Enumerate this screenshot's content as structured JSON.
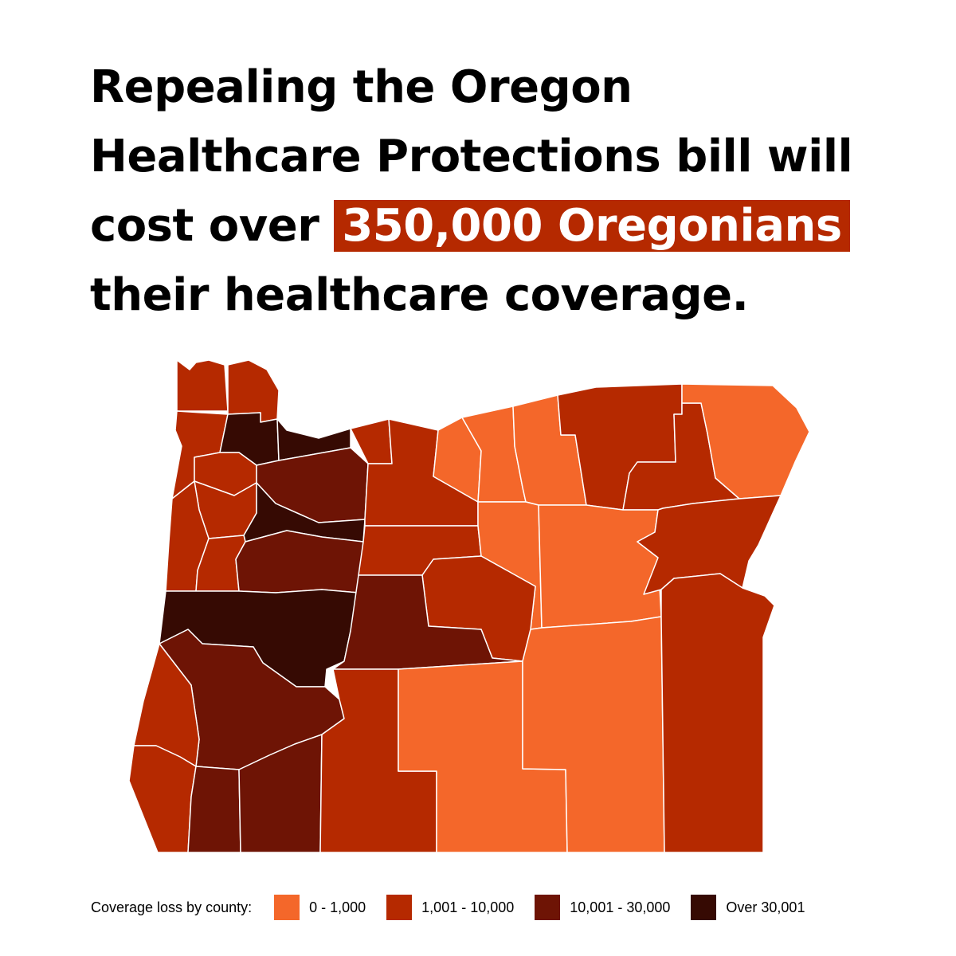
{
  "headline": {
    "line1": "Repealing the Oregon",
    "line2": "Healthcare Protections bill will",
    "line3_prefix": "cost over",
    "line3_highlight": "350,000 Oregonians",
    "line4": "their healthcare coverage."
  },
  "colors": {
    "tier1": "#f4672a",
    "tier2": "#b52900",
    "tier3": "#6e1405",
    "tier4": "#360a03",
    "highlight": "#b52900",
    "border": "#ffffff"
  },
  "legend": {
    "title": "Coverage loss by county:",
    "items": [
      {
        "label": "0 - 1,000",
        "tier": "tier1"
      },
      {
        "label": "1,001 - 10,000",
        "tier": "tier2"
      },
      {
        "label": "10,001 - 30,000",
        "tier": "tier3"
      },
      {
        "label": "Over 30,001",
        "tier": "tier4"
      }
    ]
  },
  "map": {
    "region": "Oregon",
    "counties": [
      {
        "name": "Clatsop",
        "tier": "tier2"
      },
      {
        "name": "Columbia",
        "tier": "tier2"
      },
      {
        "name": "Tillamook",
        "tier": "tier2"
      },
      {
        "name": "Washington",
        "tier": "tier4"
      },
      {
        "name": "Multnomah",
        "tier": "tier4"
      },
      {
        "name": "Yamhill",
        "tier": "tier2"
      },
      {
        "name": "Clackamas",
        "tier": "tier3"
      },
      {
        "name": "Polk",
        "tier": "tier2"
      },
      {
        "name": "Marion",
        "tier": "tier4"
      },
      {
        "name": "Lincoln",
        "tier": "tier2"
      },
      {
        "name": "Benton",
        "tier": "tier2"
      },
      {
        "name": "Linn",
        "tier": "tier3"
      },
      {
        "name": "Lane",
        "tier": "tier4"
      },
      {
        "name": "Hood River",
        "tier": "tier2"
      },
      {
        "name": "Wasco",
        "tier": "tier2"
      },
      {
        "name": "Sherman",
        "tier": "tier1"
      },
      {
        "name": "Gilliam",
        "tier": "tier1"
      },
      {
        "name": "Morrow",
        "tier": "tier1"
      },
      {
        "name": "Umatilla",
        "tier": "tier2"
      },
      {
        "name": "Union",
        "tier": "tier2"
      },
      {
        "name": "Wallowa",
        "tier": "tier1"
      },
      {
        "name": "Jefferson",
        "tier": "tier2"
      },
      {
        "name": "Wheeler",
        "tier": "tier1"
      },
      {
        "name": "Grant",
        "tier": "tier1"
      },
      {
        "name": "Baker",
        "tier": "tier2"
      },
      {
        "name": "Crook",
        "tier": "tier2"
      },
      {
        "name": "Deschutes",
        "tier": "tier3"
      },
      {
        "name": "Douglas",
        "tier": "tier3"
      },
      {
        "name": "Coos",
        "tier": "tier2"
      },
      {
        "name": "Curry",
        "tier": "tier2"
      },
      {
        "name": "Josephine",
        "tier": "tier3"
      },
      {
        "name": "Jackson",
        "tier": "tier3"
      },
      {
        "name": "Klamath",
        "tier": "tier2"
      },
      {
        "name": "Lake",
        "tier": "tier1"
      },
      {
        "name": "Harney",
        "tier": "tier1"
      },
      {
        "name": "Malheur",
        "tier": "tier2"
      }
    ]
  }
}
